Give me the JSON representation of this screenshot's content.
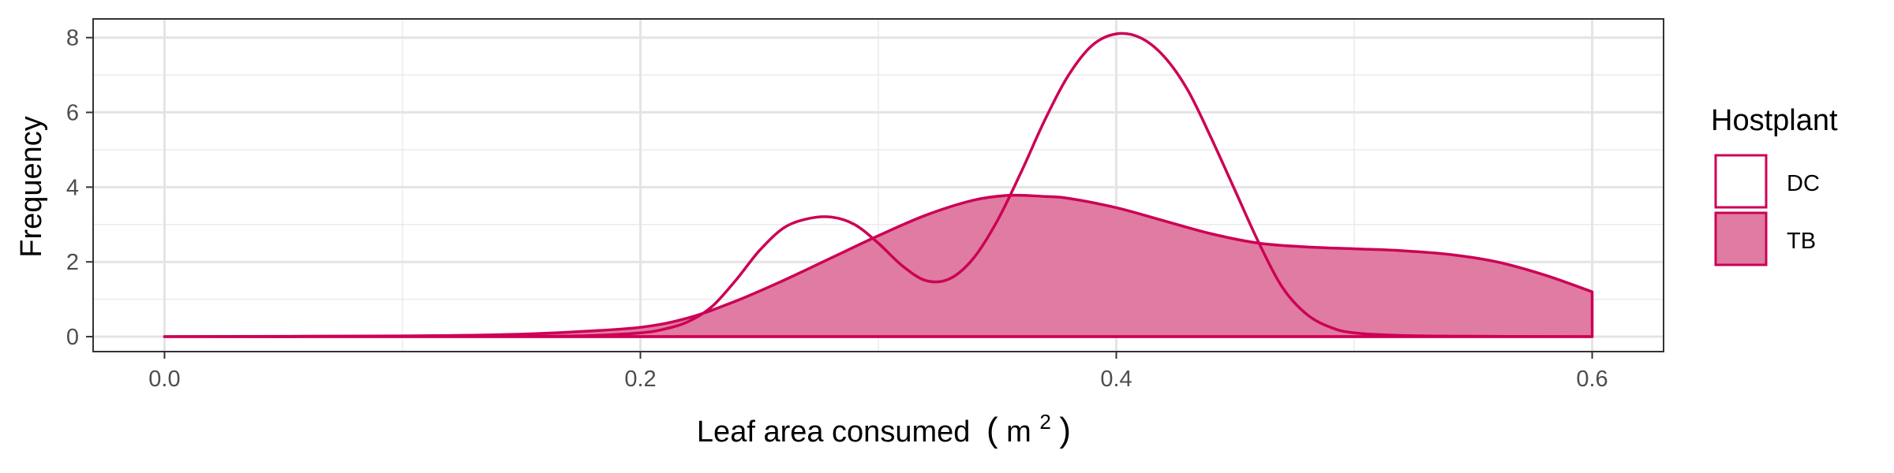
{
  "chart_data": {
    "type": "area",
    "xlabel": "Leaf area consumed",
    "xlabel_paren_open": "(",
    "xlabel_unit": "m",
    "xlabel_unit_sup": "2",
    "xlabel_paren_close": ")",
    "ylabel": "Frequency",
    "xlim": [
      -0.03,
      0.63
    ],
    "ylim": [
      -0.4,
      8.5
    ],
    "x_ticks": [
      0.0,
      0.2,
      0.4,
      0.6
    ],
    "x_tick_labels": [
      "0.0",
      "0.2",
      "0.4",
      "0.6"
    ],
    "y_ticks": [
      0,
      2,
      4,
      6,
      8
    ],
    "y_tick_labels": [
      "0",
      "2",
      "4",
      "6",
      "8"
    ],
    "grid": true,
    "legend": {
      "title": "Hostplant",
      "placement": "right",
      "entries": [
        "DC",
        "TB"
      ]
    },
    "series": [
      {
        "name": "DC",
        "fill": "none",
        "color": "#CC0055",
        "x": [
          0.0,
          0.1,
          0.16,
          0.18,
          0.2,
          0.21,
          0.22,
          0.23,
          0.24,
          0.25,
          0.26,
          0.27,
          0.28,
          0.29,
          0.3,
          0.31,
          0.32,
          0.33,
          0.34,
          0.35,
          0.36,
          0.37,
          0.38,
          0.39,
          0.4,
          0.41,
          0.42,
          0.43,
          0.44,
          0.45,
          0.46,
          0.47,
          0.48,
          0.49,
          0.5,
          0.52,
          0.55,
          0.6
        ],
        "y": [
          0.0,
          0.0,
          0.01,
          0.03,
          0.1,
          0.2,
          0.4,
          0.8,
          1.5,
          2.3,
          2.9,
          3.15,
          3.2,
          3.0,
          2.5,
          1.9,
          1.5,
          1.55,
          2.1,
          3.1,
          4.4,
          5.8,
          7.0,
          7.8,
          8.1,
          8.0,
          7.5,
          6.6,
          5.3,
          3.9,
          2.5,
          1.3,
          0.6,
          0.25,
          0.1,
          0.03,
          0.01,
          0.0
        ]
      },
      {
        "name": "TB",
        "fill": "solid",
        "color": "#CC0055",
        "fill_color": "#E07BA1",
        "x": [
          0.0,
          0.1,
          0.14,
          0.17,
          0.2,
          0.22,
          0.24,
          0.26,
          0.28,
          0.3,
          0.32,
          0.34,
          0.355,
          0.37,
          0.38,
          0.4,
          0.42,
          0.44,
          0.46,
          0.48,
          0.5,
          0.52,
          0.54,
          0.56,
          0.58,
          0.6
        ],
        "y": [
          0.0,
          0.02,
          0.05,
          0.12,
          0.25,
          0.5,
          0.95,
          1.5,
          2.1,
          2.7,
          3.25,
          3.65,
          3.78,
          3.75,
          3.7,
          3.45,
          3.1,
          2.75,
          2.5,
          2.4,
          2.35,
          2.3,
          2.2,
          2.0,
          1.65,
          1.2
        ]
      }
    ]
  }
}
